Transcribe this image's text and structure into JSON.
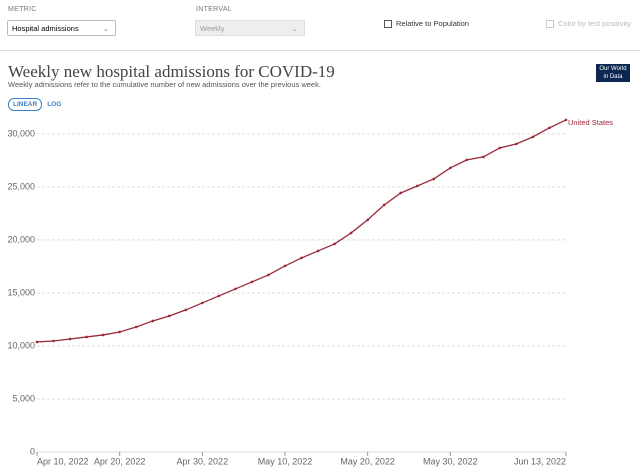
{
  "controls": {
    "metric_label": "METRIC",
    "metric_value": "Hospital admissions",
    "interval_label": "INTERVAL",
    "interval_value": "Weekly",
    "relative_label": "Relative to Population",
    "color_label": "Color by test positivity"
  },
  "logo": [
    "Our World",
    "in Data"
  ],
  "scale_buttons": [
    "LINEAR",
    "LOG"
  ],
  "chart_data": {
    "type": "line",
    "title": "Weekly new hospital admissions for COVID-19",
    "subtitle": "Weekly admissions refer to the cumulative number of new admissions over the previous week.",
    "x": [
      "2022-04-10",
      "2022-04-12",
      "2022-04-14",
      "2022-04-16",
      "2022-04-18",
      "2022-04-20",
      "2022-04-22",
      "2022-04-24",
      "2022-04-26",
      "2022-04-28",
      "2022-04-30",
      "2022-05-02",
      "2022-05-04",
      "2022-05-06",
      "2022-05-08",
      "2022-05-10",
      "2022-05-12",
      "2022-05-14",
      "2022-05-16",
      "2022-05-18",
      "2022-05-20",
      "2022-05-22",
      "2022-05-24",
      "2022-05-26",
      "2022-05-28",
      "2022-05-30",
      "2022-06-01",
      "2022-06-03",
      "2022-06-05",
      "2022-06-07",
      "2022-06-09",
      "2022-06-11",
      "2022-06-13"
    ],
    "series": [
      {
        "name": "United States",
        "color": "#9a2a38",
        "values": [
          10380,
          10470,
          10660,
          10850,
          11040,
          11320,
          11790,
          12360,
          12830,
          13400,
          14060,
          14720,
          15380,
          16040,
          16700,
          17550,
          18300,
          18960,
          19620,
          20660,
          21890,
          23300,
          24430,
          25090,
          25750,
          26790,
          27550,
          27830,
          28680,
          29060,
          29720,
          30570,
          31320
        ]
      }
    ],
    "xlim": [
      "2022-04-10",
      "2022-06-13"
    ],
    "xticks": [
      {
        "value": "2022-04-10",
        "label": "Apr 10, 2022"
      },
      {
        "value": "2022-04-20",
        "label": "Apr 20, 2022"
      },
      {
        "value": "2022-04-30",
        "label": "Apr 30, 2022"
      },
      {
        "value": "2022-05-10",
        "label": "May 10, 2022"
      },
      {
        "value": "2022-05-20",
        "label": "May 20, 2022"
      },
      {
        "value": "2022-05-30",
        "label": "May 30, 2022"
      },
      {
        "value": "2022-06-13",
        "label": "Jun 13, 2022"
      }
    ],
    "ylim": [
      0,
      31500
    ],
    "yticks": [
      0,
      {
        "value": 5000,
        "label": "5,000"
      },
      {
        "value": 10000,
        "label": "10,000"
      },
      {
        "value": 15000,
        "label": "15,000"
      },
      {
        "value": 20000,
        "label": "20,000"
      },
      {
        "value": 25000,
        "label": "25,000"
      },
      {
        "value": 30000,
        "label": "30,000"
      }
    ],
    "grid": true
  }
}
